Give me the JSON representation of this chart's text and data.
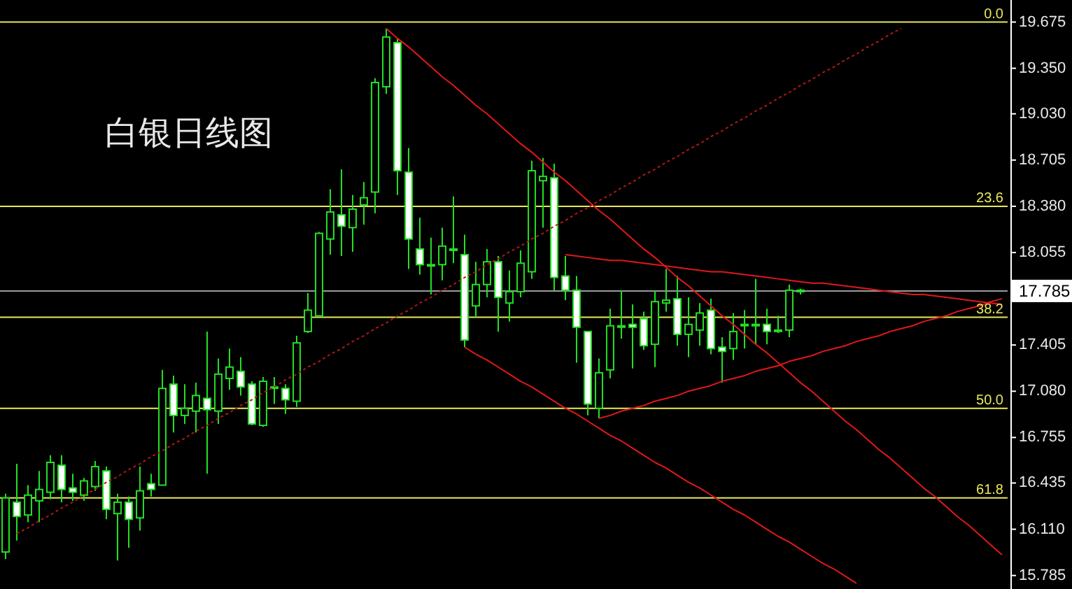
{
  "chart_data": {
    "type": "candlestick",
    "title": "白银日线图",
    "categories": [
      null,
      null,
      null,
      null,
      null,
      null,
      null,
      null,
      null,
      null,
      null,
      null,
      null,
      null,
      null,
      null,
      null,
      null,
      null,
      null,
      null,
      null,
      null,
      null,
      null,
      null,
      null,
      null,
      null,
      null,
      null,
      null,
      null,
      null,
      null,
      null,
      null,
      null,
      null,
      null,
      null,
      null,
      null,
      null,
      null,
      null,
      null,
      null,
      null,
      null,
      null,
      null,
      null,
      null,
      null,
      null,
      null,
      null,
      null,
      null,
      null,
      null,
      null,
      null,
      null,
      null,
      null,
      null,
      null,
      null,
      null,
      null,
      null,
      null,
      null,
      null,
      null,
      null,
      null,
      null,
      null,
      null,
      null,
      null,
      null,
      null,
      null,
      null,
      null,
      null
    ],
    "ylim": [
      15.69,
      19.83
    ],
    "yticks": [
      19.675,
      {
        "value": 19.35,
        "label": "19.350"
      },
      {
        "value": 19.03,
        "label": "19.030"
      },
      18.705,
      {
        "value": 18.38,
        "label": "18.380"
      },
      18.055,
      17.405,
      {
        "value": 17.08,
        "label": "17.080"
      },
      16.755,
      16.435,
      {
        "value": 16.11,
        "label": "16.110"
      },
      15.785
    ],
    "tick_labels": "y",
    "series": [
      {
        "type": "line",
        "color": "#b01818",
        "line_style": "dashed",
        "values": [
          null,
          16.08,
          16.12,
          16.17,
          16.21,
          16.26,
          16.3,
          16.35,
          16.39,
          16.44,
          16.48,
          16.53,
          16.57,
          16.62,
          16.66,
          16.71,
          16.75,
          16.8,
          16.84,
          16.89,
          16.93,
          16.98,
          17.02,
          17.07,
          17.11,
          17.16,
          17.2,
          17.25,
          17.29,
          17.34,
          17.38,
          17.43,
          17.47,
          17.52,
          17.56,
          17.61,
          17.65,
          17.7,
          17.74,
          17.79,
          17.83,
          17.88,
          17.92,
          17.97,
          18.01,
          18.06,
          18.1,
          18.15,
          18.19,
          18.24,
          18.28,
          18.33,
          18.37,
          18.42,
          18.46,
          18.51,
          18.55,
          18.6,
          18.64,
          18.69,
          18.73,
          18.78,
          18.82,
          18.87,
          18.91,
          18.96,
          19.0,
          19.05,
          19.09,
          19.14,
          19.18,
          19.23,
          19.27,
          19.32,
          19.36,
          19.41,
          19.45,
          19.5,
          19.54,
          19.59,
          19.63,
          null,
          null,
          null,
          null,
          null,
          null,
          null,
          null,
          null
        ]
      },
      {
        "type": "line",
        "color": "#e01818",
        "line_style": "solid",
        "values": [
          null,
          null,
          null,
          null,
          null,
          null,
          null,
          null,
          null,
          null,
          null,
          null,
          null,
          null,
          null,
          null,
          null,
          null,
          null,
          null,
          null,
          null,
          null,
          null,
          null,
          null,
          null,
          null,
          null,
          null,
          null,
          null,
          null,
          null,
          19.63,
          19.56,
          19.5,
          19.43,
          19.36,
          19.29,
          19.23,
          19.16,
          19.09,
          19.03,
          18.96,
          18.89,
          18.82,
          18.76,
          18.69,
          18.62,
          18.56,
          18.49,
          18.42,
          18.35,
          18.29,
          18.22,
          18.15,
          18.08,
          18.02,
          17.95,
          17.88,
          17.82,
          17.75,
          17.68,
          17.61,
          17.55,
          17.48,
          17.41,
          17.35,
          17.28,
          17.21,
          17.14,
          17.08,
          17.01,
          16.94,
          16.87,
          16.81,
          16.74,
          16.67,
          16.61,
          16.54,
          16.47,
          16.4,
          16.34,
          16.27,
          16.2,
          16.14,
          16.07,
          16.0,
          15.93
        ]
      },
      {
        "type": "line",
        "color": "#e01818",
        "line_style": "solid",
        "values": [
          null,
          null,
          null,
          null,
          null,
          null,
          null,
          null,
          null,
          null,
          null,
          null,
          null,
          null,
          null,
          null,
          null,
          null,
          null,
          null,
          null,
          null,
          null,
          null,
          null,
          null,
          null,
          null,
          null,
          null,
          null,
          null,
          null,
          null,
          null,
          null,
          null,
          null,
          null,
          null,
          null,
          17.39,
          17.34,
          17.3,
          17.25,
          17.2,
          17.15,
          17.11,
          17.06,
          17.01,
          16.96,
          16.92,
          16.87,
          16.82,
          16.77,
          16.73,
          16.68,
          16.63,
          16.58,
          16.54,
          16.49,
          16.44,
          16.4,
          16.35,
          16.3,
          16.25,
          16.21,
          16.16,
          16.11,
          16.06,
          16.02,
          15.97,
          15.92,
          15.87,
          15.83,
          15.78,
          15.73,
          null,
          null,
          null,
          null,
          null,
          null,
          null,
          null,
          null,
          null,
          null,
          null,
          null
        ]
      },
      {
        "type": "line",
        "color": "#e01818",
        "line_style": "solid",
        "values": [
          null,
          null,
          null,
          null,
          null,
          null,
          null,
          null,
          null,
          null,
          null,
          null,
          null,
          null,
          null,
          null,
          null,
          null,
          null,
          null,
          null,
          null,
          null,
          null,
          null,
          null,
          null,
          null,
          null,
          null,
          null,
          null,
          null,
          null,
          null,
          null,
          null,
          null,
          null,
          null,
          null,
          null,
          null,
          null,
          null,
          null,
          null,
          null,
          null,
          null,
          18.04,
          18.03,
          18.02,
          18.01,
          18.0,
          18.0,
          17.99,
          17.98,
          17.97,
          17.96,
          17.95,
          17.94,
          17.93,
          17.92,
          17.92,
          17.91,
          17.9,
          17.89,
          17.88,
          17.87,
          17.86,
          17.85,
          17.84,
          17.84,
          17.83,
          17.82,
          17.81,
          17.8,
          17.79,
          17.78,
          17.77,
          17.76,
          17.76,
          17.75,
          17.74,
          17.73,
          17.72,
          17.71,
          17.7,
          17.69
        ]
      },
      {
        "type": "line",
        "color": "#e01818",
        "line_style": "solid",
        "values": [
          null,
          null,
          null,
          null,
          null,
          null,
          null,
          null,
          null,
          null,
          null,
          null,
          null,
          null,
          null,
          null,
          null,
          null,
          null,
          null,
          null,
          null,
          null,
          null,
          null,
          null,
          null,
          null,
          null,
          null,
          null,
          null,
          null,
          null,
          null,
          null,
          null,
          null,
          null,
          null,
          null,
          null,
          null,
          null,
          null,
          null,
          null,
          null,
          null,
          null,
          null,
          null,
          null,
          16.89,
          16.91,
          16.94,
          16.96,
          16.98,
          17.01,
          17.03,
          17.05,
          17.08,
          17.1,
          17.12,
          17.15,
          17.17,
          17.19,
          17.22,
          17.24,
          17.26,
          17.29,
          17.31,
          17.33,
          17.36,
          17.38,
          17.4,
          17.43,
          17.45,
          17.47,
          17.5,
          17.52,
          17.54,
          17.57,
          17.59,
          17.61,
          17.64,
          17.66,
          17.68,
          17.71,
          17.73
        ]
      },
      {
        "color": "#22e022",
        "ohlc": [
          [
            15.95,
            16.36,
            15.9,
            16.33
          ],
          [
            16.3,
            16.57,
            16.03,
            16.2
          ],
          [
            16.21,
            16.42,
            16.16,
            16.35
          ],
          [
            16.31,
            16.52,
            16.16,
            16.39
          ],
          [
            16.37,
            16.63,
            16.32,
            16.58
          ],
          [
            16.56,
            16.63,
            16.3,
            16.39
          ],
          [
            16.4,
            16.5,
            16.31,
            16.37
          ],
          [
            16.35,
            16.47,
            16.31,
            16.45
          ],
          [
            16.41,
            16.59,
            16.38,
            16.55
          ],
          [
            16.52,
            16.55,
            16.18,
            16.25
          ],
          [
            16.22,
            16.36,
            15.89,
            16.3
          ],
          [
            16.3,
            16.34,
            15.98,
            16.18
          ],
          [
            16.19,
            16.55,
            16.1,
            16.38
          ],
          [
            16.43,
            16.5,
            16.34,
            16.39
          ],
          [
            16.42,
            17.23,
            16.42,
            17.1
          ],
          [
            17.13,
            17.19,
            16.79,
            16.91
          ],
          [
            16.91,
            17.13,
            16.85,
            16.96
          ],
          [
            16.94,
            17.14,
            16.79,
            17.05
          ],
          [
            17.03,
            17.5,
            16.5,
            16.95
          ],
          [
            16.94,
            17.31,
            16.85,
            17.2
          ],
          [
            17.17,
            17.38,
            17.09,
            17.25
          ],
          [
            17.22,
            17.32,
            17.05,
            17.11
          ],
          [
            17.13,
            17.15,
            16.84,
            16.85
          ],
          [
            16.84,
            17.18,
            16.83,
            17.15
          ],
          [
            17.11,
            17.18,
            16.99,
            17.11
          ],
          [
            17.1,
            17.13,
            16.92,
            17.02
          ],
          [
            17.01,
            17.47,
            16.97,
            17.42
          ],
          [
            17.5,
            17.77,
            17.49,
            17.65
          ],
          [
            17.61,
            18.2,
            17.61,
            18.19
          ],
          [
            18.15,
            18.5,
            18.04,
            18.34
          ],
          [
            18.32,
            18.64,
            18.03,
            18.24
          ],
          [
            18.23,
            18.46,
            18.06,
            18.36
          ],
          [
            18.39,
            18.55,
            18.25,
            18.44
          ],
          [
            18.48,
            19.28,
            18.33,
            19.25
          ],
          [
            19.22,
            19.63,
            19.17,
            19.57
          ],
          [
            19.53,
            19.56,
            18.46,
            18.63
          ],
          [
            18.62,
            18.79,
            17.94,
            18.15
          ],
          [
            18.08,
            18.3,
            17.9,
            17.97
          ],
          [
            17.97,
            18.16,
            17.76,
            17.97
          ],
          [
            17.97,
            18.23,
            17.86,
            18.1
          ],
          [
            18.08,
            18.45,
            17.98,
            18.08
          ],
          [
            18.04,
            18.18,
            17.39,
            17.44
          ],
          [
            17.68,
            17.99,
            17.6,
            17.83
          ],
          [
            17.83,
            18.08,
            17.74,
            17.99
          ],
          [
            17.99,
            18.03,
            17.5,
            17.74
          ],
          [
            17.7,
            17.93,
            17.57,
            17.78
          ],
          [
            17.78,
            18.07,
            17.74,
            17.98
          ],
          [
            17.92,
            18.7,
            17.87,
            18.63
          ],
          [
            18.56,
            18.72,
            18.23,
            18.59
          ],
          [
            18.58,
            18.68,
            17.79,
            17.88
          ],
          [
            17.89,
            18.03,
            17.72,
            17.79
          ],
          [
            17.79,
            17.89,
            17.28,
            17.53
          ],
          [
            17.5,
            17.5,
            16.91,
            16.99
          ],
          [
            16.96,
            17.31,
            16.89,
            17.21
          ],
          [
            17.23,
            17.66,
            17.17,
            17.54
          ],
          [
            17.54,
            17.79,
            17.45,
            17.54
          ],
          [
            17.55,
            17.69,
            17.24,
            17.53
          ],
          [
            17.59,
            17.64,
            17.37,
            17.4
          ],
          [
            17.41,
            17.79,
            17.25,
            17.71
          ],
          [
            17.7,
            17.94,
            17.64,
            17.72
          ],
          [
            17.73,
            17.89,
            17.4,
            17.48
          ],
          [
            17.48,
            17.74,
            17.32,
            17.55
          ],
          [
            17.51,
            17.7,
            17.4,
            17.63
          ],
          [
            17.65,
            17.73,
            17.34,
            17.38
          ],
          [
            17.39,
            17.46,
            17.14,
            17.36
          ],
          [
            17.38,
            17.63,
            17.3,
            17.5
          ],
          [
            17.55,
            17.65,
            17.38,
            17.55
          ],
          [
            17.55,
            17.87,
            17.41,
            17.55
          ],
          [
            17.55,
            17.66,
            17.41,
            17.5
          ],
          [
            17.51,
            17.61,
            17.49,
            17.51
          ],
          [
            17.51,
            17.83,
            17.46,
            17.79
          ],
          [
            17.79,
            17.8,
            17.76,
            17.79
          ],
          null,
          null,
          null,
          null,
          null,
          null,
          null,
          null,
          null,
          null,
          null,
          null,
          null,
          null,
          null,
          null,
          null,
          null
        ]
      }
    ],
    "ref_lines": [
      {
        "axis": "y",
        "value": 19.675,
        "color": "#e8e85a"
      },
      {
        "axis": "y",
        "value": 18.38,
        "color": "#e8e85a"
      },
      {
        "axis": "y",
        "value": 17.6,
        "color": "#e8e85a"
      },
      {
        "axis": "y",
        "value": 16.96,
        "color": "#e8e85a"
      },
      {
        "axis": "y",
        "value": 16.33,
        "color": "#e8e85a"
      },
      {
        "axis": "y",
        "value": 17.785,
        "label": "17.785",
        "color": "#9a9aa0"
      }
    ],
    "annotations": [
      {
        "text": "0.0",
        "y": 19.675
      },
      {
        "text": "23.6",
        "y": 18.38
      },
      {
        "text": "38.2",
        "y": 17.6
      },
      {
        "text": "50.0",
        "y": 16.96
      },
      {
        "text": "61.8",
        "y": 16.33
      }
    ]
  }
}
